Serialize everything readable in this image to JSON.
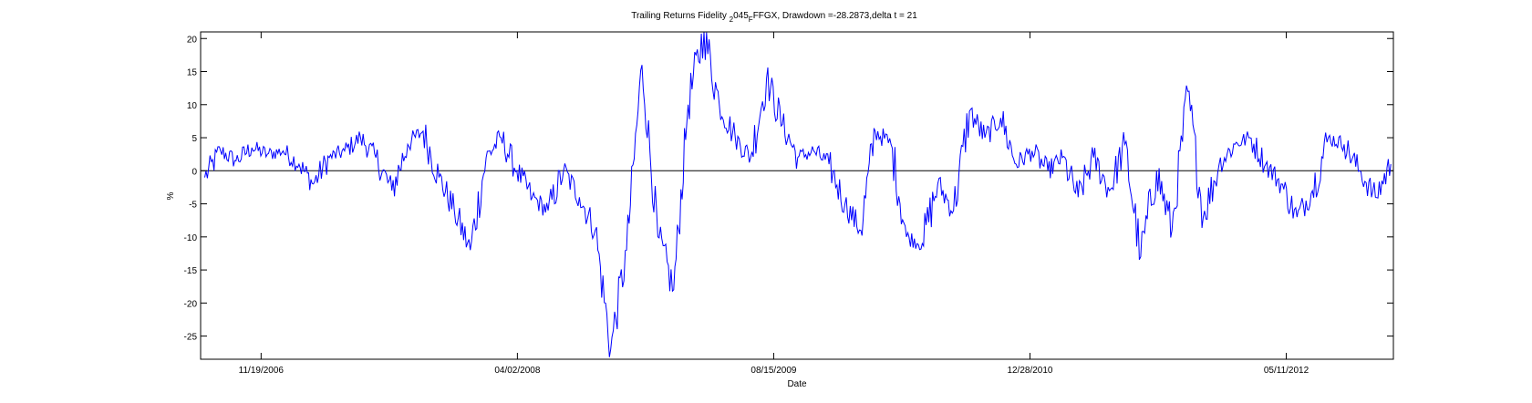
{
  "chart_data": {
    "type": "line",
    "title": "Trailing Returns Fidelity _2045_FFGX, Drawdown =-28.2873,delta t = 21",
    "title_parts": {
      "pre": "Trailing Returns Fidelity ",
      "sub1": "2",
      "mid": "045",
      "sub2": "F",
      "post": "FFGX, Drawdown =-28.2873,delta t = 21"
    },
    "xlabel": "Date",
    "ylabel": "%",
    "xlim": [
      "2006-07-24",
      "2012-12-06"
    ],
    "ylim": [
      -28.5,
      21
    ],
    "x_ticks": [
      "11/19/2006",
      "04/02/2008",
      "08/15/2009",
      "12/28/2010",
      "05/11/2012"
    ],
    "y_ticks": [
      20,
      15,
      10,
      5,
      0,
      -5,
      -10,
      -15,
      -20,
      -25
    ],
    "grid": false,
    "legend": "none",
    "line_color": "#0000ff",
    "series": [
      {
        "x": [
          "2006-08-01",
          "2006-09-01",
          "2006-10-01",
          "2006-11-01",
          "2006-12-01",
          "2007-01-01",
          "2007-02-01",
          "2007-03-01",
          "2007-04-01",
          "2007-05-01",
          "2007-06-01",
          "2007-07-01",
          "2007-08-01",
          "2007-09-01",
          "2007-10-01",
          "2007-11-01",
          "2007-12-01",
          "2008-01-01",
          "2008-02-01",
          "2008-03-01",
          "2008-04-01",
          "2008-05-01",
          "2008-06-01",
          "2008-07-01",
          "2008-08-01",
          "2008-09-01",
          "2008-10-01",
          "2008-11-01",
          "2008-12-01",
          "2009-01-01",
          "2009-02-01",
          "2009-03-01",
          "2009-04-01",
          "2009-05-01",
          "2009-06-01",
          "2009-07-01",
          "2009-08-01",
          "2009-09-01",
          "2009-10-01",
          "2009-11-01",
          "2009-12-01",
          "2010-01-01",
          "2010-02-01",
          "2010-03-01",
          "2010-04-01",
          "2010-05-01",
          "2010-06-01",
          "2010-07-01",
          "2010-08-01",
          "2010-09-01",
          "2010-10-01",
          "2010-11-01",
          "2010-12-01",
          "2011-01-01",
          "2011-02-01",
          "2011-03-01",
          "2011-04-01",
          "2011-05-01",
          "2011-06-01",
          "2011-07-01",
          "2011-08-01",
          "2011-09-01",
          "2011-10-01",
          "2011-11-01",
          "2011-12-01",
          "2012-01-01",
          "2012-02-01",
          "2012-03-01",
          "2012-04-01",
          "2012-05-01",
          "2012-06-01",
          "2012-07-01",
          "2012-08-01",
          "2012-09-01",
          "2012-10-01",
          "2012-11-01",
          "2012-12-01"
        ],
        "values": [
          -1.0,
          3.0,
          1.5,
          3.5,
          2.5,
          3.0,
          1.0,
          -2.0,
          2.0,
          3.0,
          5.0,
          2.0,
          -3.0,
          4.0,
          6.0,
          -1.0,
          -6.0,
          -12.0,
          2.0,
          5.0,
          0.0,
          -4.0,
          -6.0,
          0.0,
          -4.0,
          -9.0,
          -27.0,
          -12.0,
          16.0,
          -10.0,
          -18.0,
          10.0,
          21.0,
          10.0,
          5.0,
          2.0,
          14.0,
          7.0,
          2.0,
          3.0,
          1.0,
          -5.0,
          -9.0,
          6.0,
          4.0,
          -10.0,
          -11.0,
          -2.0,
          -6.0,
          9.0,
          5.0,
          8.0,
          1.0,
          3.0,
          0.0,
          2.0,
          -4.0,
          2.0,
          -3.0,
          4.0,
          -13.0,
          0.0,
          -9.0,
          12.0,
          -7.0,
          1.0,
          4.0,
          5.0,
          1.0,
          -2.0,
          -7.0,
          -3.0,
          5.0,
          4.0,
          0.0,
          -4.0,
          1.0
        ]
      }
    ]
  }
}
